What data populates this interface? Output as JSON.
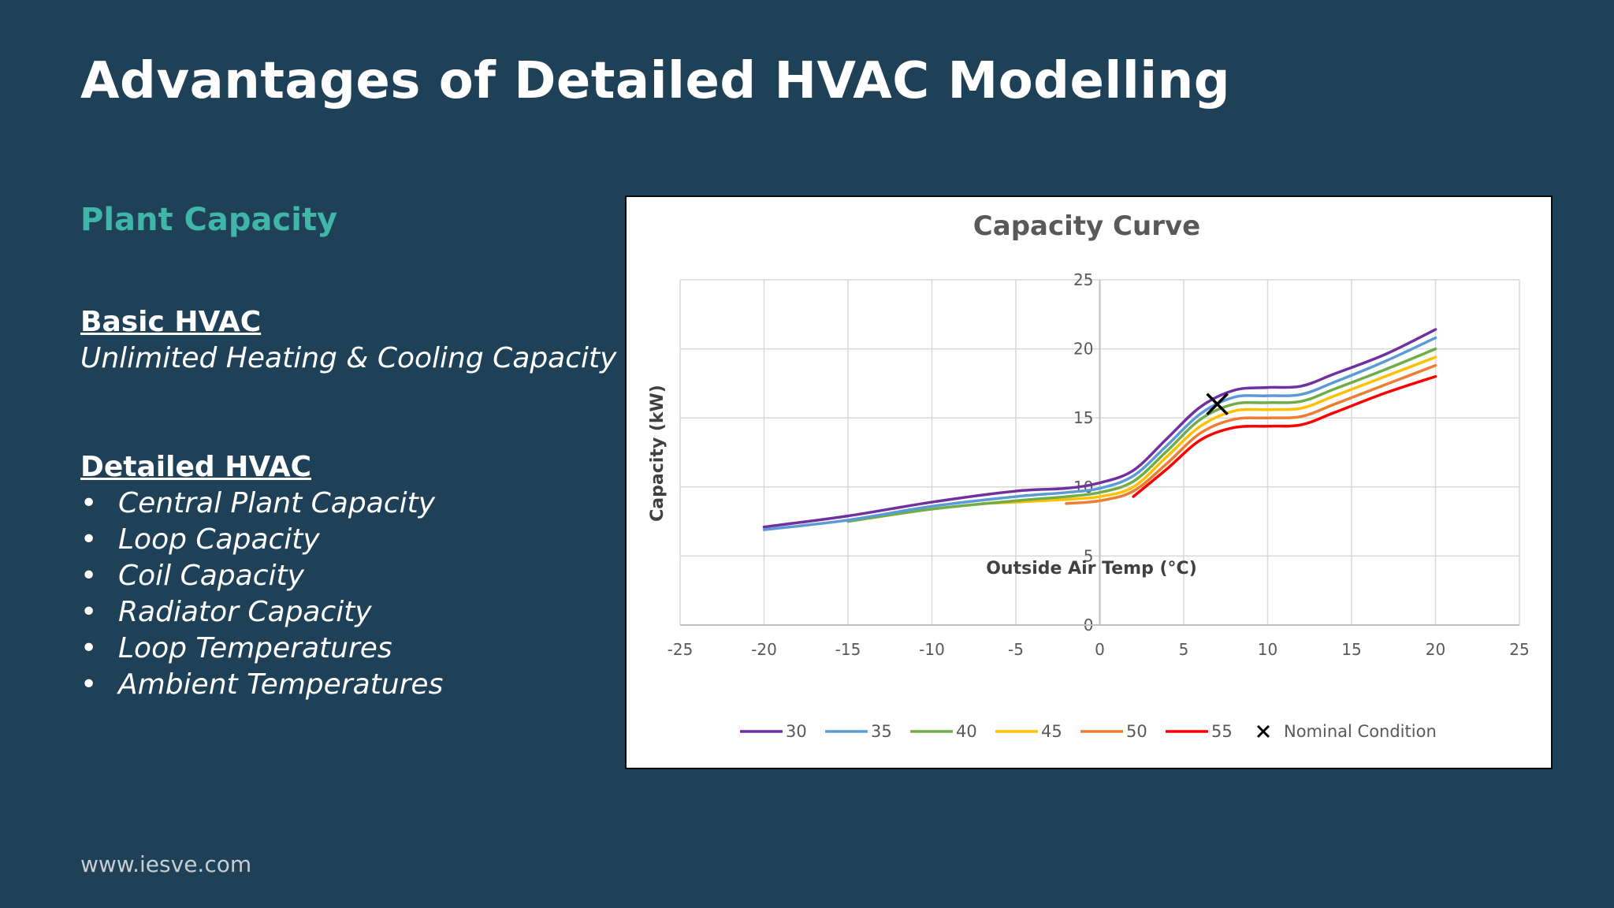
{
  "slide": {
    "title": "Advantages of Detailed HVAC Modelling",
    "section_heading": "Plant Capacity",
    "basic": {
      "heading": "Basic HVAC",
      "text": "Unlimited Heating & Cooling Capacity"
    },
    "detailed": {
      "heading": "Detailed HVAC",
      "bullet_glyph": "•",
      "items": [
        "Central Plant Capacity",
        "Loop Capacity",
        "Coil Capacity",
        "Radiator Capacity",
        "Loop Temperatures",
        "Ambient Temperatures"
      ]
    },
    "footer": "www.iesve.com",
    "colors": {
      "background": "#1f4158",
      "accent": "#3fb6a8",
      "text": "#ffffff"
    }
  },
  "chart_data": {
    "type": "line",
    "title": "Capacity Curve",
    "xlabel": "Outside Air Temp (°C)",
    "ylabel": "Capacity (kW)",
    "xlim": [
      -25,
      25
    ],
    "ylim": [
      0,
      25
    ],
    "xticks": [
      -25,
      -20,
      -15,
      -10,
      -5,
      0,
      5,
      10,
      15,
      20,
      25
    ],
    "yticks": [
      0,
      5,
      10,
      15,
      20,
      25
    ],
    "grid": true,
    "legend_position": "bottom",
    "series": [
      {
        "name": "30",
        "color": "#7030a0",
        "points": [
          [
            -20,
            7.1
          ],
          [
            -15,
            7.9
          ],
          [
            -10,
            8.9
          ],
          [
            -5,
            9.7
          ],
          [
            -2,
            9.9
          ],
          [
            0,
            10.3
          ],
          [
            2,
            11.2
          ],
          [
            4,
            13.5
          ],
          [
            6,
            15.8
          ],
          [
            8,
            17.0
          ],
          [
            10,
            17.2
          ],
          [
            12,
            17.3
          ],
          [
            14,
            18.2
          ],
          [
            17,
            19.6
          ],
          [
            20,
            21.4
          ]
        ]
      },
      {
        "name": "35",
        "color": "#5b9bd5",
        "points": [
          [
            -20,
            6.9
          ],
          [
            -15,
            7.6
          ],
          [
            -10,
            8.6
          ],
          [
            -5,
            9.3
          ],
          [
            -2,
            9.6
          ],
          [
            0,
            9.9
          ],
          [
            2,
            10.8
          ],
          [
            4,
            13.0
          ],
          [
            6,
            15.3
          ],
          [
            8,
            16.5
          ],
          [
            10,
            16.6
          ],
          [
            12,
            16.7
          ],
          [
            14,
            17.6
          ],
          [
            17,
            19.1
          ],
          [
            20,
            20.8
          ]
        ]
      },
      {
        "name": "40",
        "color": "#70ad47",
        "points": [
          [
            -15,
            7.5
          ],
          [
            -10,
            8.4
          ],
          [
            -5,
            9.0
          ],
          [
            -2,
            9.3
          ],
          [
            0,
            9.6
          ],
          [
            2,
            10.4
          ],
          [
            4,
            12.6
          ],
          [
            6,
            14.9
          ],
          [
            8,
            16.0
          ],
          [
            10,
            16.1
          ],
          [
            12,
            16.2
          ],
          [
            14,
            17.1
          ],
          [
            17,
            18.5
          ],
          [
            20,
            20.0
          ]
        ]
      },
      {
        "name": "45",
        "color": "#ffc000",
        "points": [
          [
            -7,
            8.8
          ],
          [
            -5,
            8.9
          ],
          [
            -2,
            9.1
          ],
          [
            0,
            9.3
          ],
          [
            2,
            10.0
          ],
          [
            4,
            12.2
          ],
          [
            6,
            14.4
          ],
          [
            8,
            15.5
          ],
          [
            10,
            15.6
          ],
          [
            12,
            15.7
          ],
          [
            14,
            16.6
          ],
          [
            17,
            18.0
          ],
          [
            20,
            19.4
          ]
        ]
      },
      {
        "name": "50",
        "color": "#ed7d31",
        "points": [
          [
            -2,
            8.8
          ],
          [
            0,
            9.0
          ],
          [
            2,
            9.7
          ],
          [
            4,
            11.7
          ],
          [
            6,
            13.9
          ],
          [
            8,
            14.9
          ],
          [
            10,
            15.0
          ],
          [
            12,
            15.1
          ],
          [
            14,
            16.0
          ],
          [
            17,
            17.4
          ],
          [
            20,
            18.8
          ]
        ]
      },
      {
        "name": "55",
        "color": "#ff0000",
        "points": [
          [
            2,
            9.3
          ],
          [
            4,
            11.3
          ],
          [
            6,
            13.4
          ],
          [
            8,
            14.3
          ],
          [
            10,
            14.4
          ],
          [
            12,
            14.5
          ],
          [
            14,
            15.4
          ],
          [
            17,
            16.8
          ],
          [
            20,
            18.0
          ]
        ]
      }
    ],
    "markers": [
      {
        "name": "Nominal Condition",
        "symbol": "×",
        "color": "#000000",
        "x": 7,
        "y": 16
      }
    ]
  }
}
